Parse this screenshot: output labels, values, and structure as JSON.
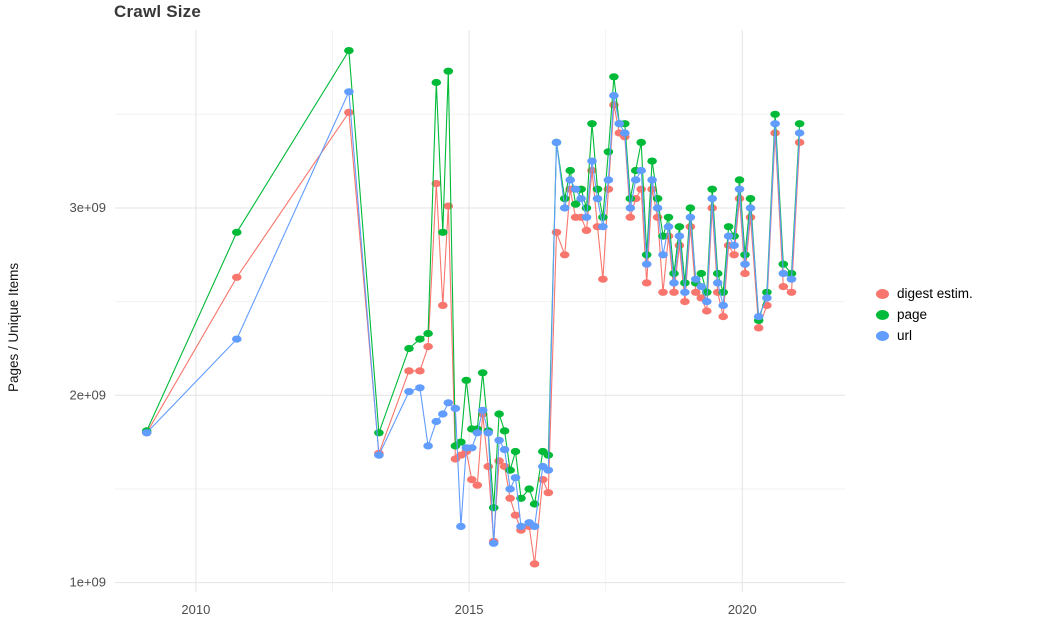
{
  "chart_data": {
    "type": "line",
    "title": "Crawl Size",
    "xlabel": "",
    "ylabel": "Pages / Unique Items",
    "value_unit": "1e+09",
    "grid": true,
    "legend_position": "right",
    "x_range": [
      2008.52,
      2021.88
    ],
    "y_range": [
      0.95,
      3.95
    ],
    "x_ticks": [
      2010,
      2015,
      2020
    ],
    "x_tick_labels": [
      "2010",
      "2015",
      "2020"
    ],
    "x_minor_ticks": [
      2012.5,
      2017.5
    ],
    "y_ticks": [
      1,
      2,
      3
    ],
    "y_tick_labels": [
      "1e+09",
      "2e+09",
      "3e+09"
    ],
    "y_minor_ticks": [
      1.5,
      2.5,
      3.5
    ],
    "x": [
      2009.1,
      2010.75,
      2012.8,
      2013.35,
      2013.9,
      2014.1,
      2014.25,
      2014.4,
      2014.52,
      2014.62,
      2014.75,
      2014.85,
      2014.95,
      2015.05,
      2015.15,
      2015.25,
      2015.35,
      2015.45,
      2015.55,
      2015.65,
      2015.75,
      2015.85,
      2015.95,
      2016.1,
      2016.2,
      2016.35,
      2016.45,
      2016.6,
      2016.75,
      2016.85,
      2016.95,
      2017.05,
      2017.15,
      2017.25,
      2017.35,
      2017.45,
      2017.55,
      2017.65,
      2017.75,
      2017.85,
      2017.95,
      2018.05,
      2018.15,
      2018.25,
      2018.35,
      2018.45,
      2018.55,
      2018.65,
      2018.75,
      2018.85,
      2018.95,
      2019.05,
      2019.15,
      2019.25,
      2019.35,
      2019.45,
      2019.55,
      2019.65,
      2019.75,
      2019.85,
      2019.95,
      2020.05,
      2020.15,
      2020.3,
      2020.45,
      2020.6,
      2020.75,
      2020.9,
      2021.05
    ],
    "series": [
      {
        "name": "digest estim.",
        "color": "#F8766D",
        "values": [
          1.8,
          2.63,
          3.51,
          1.69,
          2.13,
          2.13,
          2.26,
          3.13,
          2.48,
          3.01,
          1.66,
          1.68,
          1.7,
          1.55,
          1.52,
          1.9,
          1.62,
          1.22,
          1.65,
          1.62,
          1.45,
          1.36,
          1.28,
          1.3,
          1.1,
          1.55,
          1.48,
          2.87,
          2.75,
          3.1,
          2.95,
          2.95,
          2.88,
          3.2,
          2.9,
          2.62,
          3.1,
          3.55,
          3.4,
          3.38,
          2.95,
          3.05,
          3.1,
          2.6,
          3.1,
          2.95,
          2.55,
          2.85,
          2.55,
          2.8,
          2.5,
          2.9,
          2.55,
          2.52,
          2.45,
          3.0,
          2.55,
          2.42,
          2.8,
          2.75,
          3.05,
          2.65,
          2.95,
          2.36,
          2.48,
          3.4,
          2.58,
          2.55,
          3.35
        ]
      },
      {
        "name": "page",
        "color": "#00BA38",
        "values": [
          1.81,
          2.87,
          3.84,
          1.8,
          2.25,
          2.3,
          2.33,
          3.67,
          2.87,
          3.73,
          1.73,
          1.75,
          2.08,
          1.82,
          1.82,
          2.12,
          1.81,
          1.4,
          1.9,
          1.81,
          1.6,
          1.7,
          1.45,
          1.5,
          1.42,
          1.7,
          1.68,
          3.35,
          3.05,
          3.2,
          3.02,
          3.1,
          3.0,
          3.45,
          3.1,
          2.95,
          3.3,
          3.7,
          3.45,
          3.45,
          3.05,
          3.2,
          3.35,
          2.75,
          3.25,
          3.05,
          2.85,
          2.95,
          2.65,
          2.9,
          2.6,
          3.0,
          2.6,
          2.65,
          2.55,
          3.1,
          2.65,
          2.55,
          2.9,
          2.85,
          3.15,
          2.75,
          3.05,
          2.4,
          2.55,
          3.5,
          2.7,
          2.65,
          3.45
        ]
      },
      {
        "name": "url",
        "color": "#619CFF",
        "values": [
          1.8,
          2.3,
          3.62,
          1.68,
          2.02,
          2.04,
          1.73,
          1.86,
          1.9,
          1.96,
          1.93,
          1.3,
          1.72,
          1.72,
          1.8,
          1.92,
          1.8,
          1.21,
          1.76,
          1.71,
          1.5,
          1.56,
          1.3,
          1.32,
          1.3,
          1.62,
          1.6,
          3.35,
          3.0,
          3.15,
          3.1,
          3.05,
          2.95,
          3.25,
          3.05,
          2.9,
          3.15,
          3.6,
          3.45,
          3.4,
          3.0,
          3.15,
          3.2,
          2.7,
          3.15,
          3.0,
          2.75,
          2.9,
          2.6,
          2.85,
          2.55,
          2.95,
          2.62,
          2.58,
          2.5,
          3.05,
          2.6,
          2.48,
          2.85,
          2.8,
          3.1,
          2.7,
          3.0,
          2.42,
          2.52,
          3.45,
          2.65,
          2.62,
          3.4
        ]
      }
    ],
    "style": {
      "major_grid_color": "#E4E4E4",
      "minor_grid_color": "#F2F2F2",
      "tick_label_color": "#4D4D4D",
      "title_color": "#383838"
    }
  }
}
